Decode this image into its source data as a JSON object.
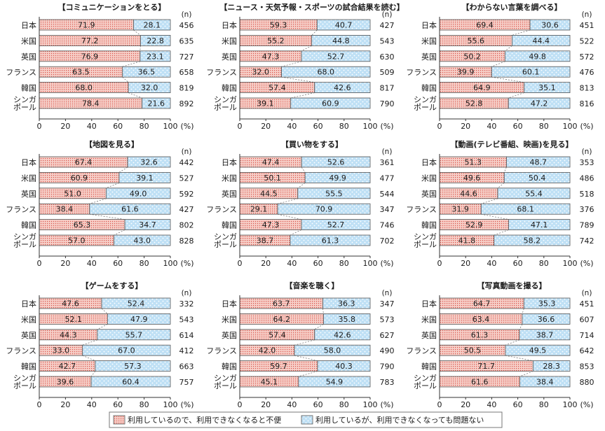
{
  "colors": {
    "inconvenient_fill": "#f6cfc8",
    "inconvenient_dot": "#d9544a",
    "no_problem_fill": "#bfe0f5",
    "no_problem_dot": "#ffffff",
    "bar_stroke": "#555555"
  },
  "legend": [
    {
      "label": "利用しているので、利用できなくなると不便",
      "pattern": "inconvenient"
    },
    {
      "label": "利用しているが、利用できなくなっても問題ない",
      "pattern": "no_problem"
    }
  ],
  "chart_data": [
    {
      "type": "bar",
      "orientation": "horizontal",
      "stacked": true,
      "title": "【コミュニケーションをとる】",
      "categories": [
        "日本",
        "米国",
        "英国",
        "フランス",
        "韓国",
        "シンガポール"
      ],
      "category_labels": [
        [
          "日本"
        ],
        [
          "米国"
        ],
        [
          "英国"
        ],
        [
          "フランス"
        ],
        [
          "韓国"
        ],
        [
          "シンガ",
          "ポール"
        ]
      ],
      "series": [
        {
          "name": "利用しているので、利用できなくなると不便",
          "values": [
            71.9,
            77.2,
            76.9,
            63.5,
            68.0,
            78.4
          ]
        },
        {
          "name": "利用しているが、利用できなくなっても問題ない",
          "values": [
            28.1,
            22.8,
            23.1,
            36.5,
            32.0,
            21.6
          ]
        }
      ],
      "n_label": "(n)",
      "n": [
        456,
        635,
        727,
        658,
        819,
        892
      ],
      "xlim": [
        0,
        100
      ],
      "xticks": [
        "0",
        "20",
        "40",
        "60",
        "80",
        "100"
      ],
      "unit": "(%)"
    },
    {
      "type": "bar",
      "orientation": "horizontal",
      "stacked": true,
      "title": "【ニュース・天気予報・スポーツの試合結果を読む】",
      "categories": [
        "日本",
        "米国",
        "英国",
        "フランス",
        "韓国",
        "シンガポール"
      ],
      "category_labels": [
        [
          "日本"
        ],
        [
          "米国"
        ],
        [
          "英国"
        ],
        [
          "フランス"
        ],
        [
          "韓国"
        ],
        [
          "シンガ",
          "ポール"
        ]
      ],
      "series": [
        {
          "name": "利用しているので、利用できなくなると不便",
          "values": [
            59.3,
            55.2,
            47.3,
            32.0,
            57.4,
            39.1
          ]
        },
        {
          "name": "利用しているが、利用できなくなっても問題ない",
          "values": [
            40.7,
            44.8,
            52.7,
            68.0,
            42.6,
            60.9
          ]
        }
      ],
      "n_label": "(n)",
      "n": [
        427,
        543,
        630,
        509,
        817,
        790
      ],
      "xlim": [
        0,
        100
      ],
      "xticks": [
        "0",
        "20",
        "40",
        "60",
        "80",
        "100"
      ],
      "unit": "(%)"
    },
    {
      "type": "bar",
      "orientation": "horizontal",
      "stacked": true,
      "title": "【わからない言葉を調べる】",
      "categories": [
        "日本",
        "米国",
        "英国",
        "フランス",
        "韓国",
        "シンガポール"
      ],
      "category_labels": [
        [
          "日本"
        ],
        [
          "米国"
        ],
        [
          "英国"
        ],
        [
          "フランス"
        ],
        [
          "韓国"
        ],
        [
          "シンガ",
          "ポール"
        ]
      ],
      "series": [
        {
          "name": "利用しているので、利用できなくなると不便",
          "values": [
            69.4,
            55.6,
            50.2,
            39.9,
            64.9,
            52.8
          ]
        },
        {
          "name": "利用しているが、利用できなくなっても問題ない",
          "values": [
            30.6,
            44.4,
            49.8,
            60.1,
            35.1,
            47.2
          ]
        }
      ],
      "n_label": "(n)",
      "n": [
        451,
        522,
        572,
        476,
        813,
        816
      ],
      "xlim": [
        0,
        100
      ],
      "xticks": [
        "0",
        "20",
        "40",
        "60",
        "80",
        "100"
      ],
      "unit": "(%)"
    },
    {
      "type": "bar",
      "orientation": "horizontal",
      "stacked": true,
      "title": "【地図を見る】",
      "categories": [
        "日本",
        "米国",
        "英国",
        "フランス",
        "韓国",
        "シンガポール"
      ],
      "category_labels": [
        [
          "日本"
        ],
        [
          "米国"
        ],
        [
          "英国"
        ],
        [
          "フランス"
        ],
        [
          "韓国"
        ],
        [
          "シンガ",
          "ポール"
        ]
      ],
      "series": [
        {
          "name": "利用しているので、利用できなくなると不便",
          "values": [
            67.4,
            60.9,
            51.0,
            38.4,
            65.3,
            57.0
          ]
        },
        {
          "name": "利用しているが、利用できなくなっても問題ない",
          "values": [
            32.6,
            39.1,
            49.0,
            61.6,
            34.7,
            43.0
          ]
        }
      ],
      "n_label": "(n)",
      "n": [
        442,
        527,
        592,
        427,
        802,
        828
      ],
      "xlim": [
        0,
        100
      ],
      "xticks": [
        "0",
        "20",
        "40",
        "60",
        "80",
        "100"
      ],
      "unit": "(%)"
    },
    {
      "type": "bar",
      "orientation": "horizontal",
      "stacked": true,
      "title": "【買い物をする】",
      "categories": [
        "日本",
        "米国",
        "英国",
        "フランス",
        "韓国",
        "シンガポール"
      ],
      "category_labels": [
        [
          "日本"
        ],
        [
          "米国"
        ],
        [
          "英国"
        ],
        [
          "フランス"
        ],
        [
          "韓国"
        ],
        [
          "シンガ",
          "ポール"
        ]
      ],
      "series": [
        {
          "name": "利用しているので、利用できなくなると不便",
          "values": [
            47.4,
            50.1,
            44.5,
            29.1,
            47.3,
            38.7
          ]
        },
        {
          "name": "利用しているが、利用できなくなっても問題ない",
          "values": [
            52.6,
            49.9,
            55.5,
            70.9,
            52.7,
            61.3
          ]
        }
      ],
      "n_label": "(n)",
      "n": [
        361,
        477,
        544,
        347,
        746,
        702
      ],
      "xlim": [
        0,
        100
      ],
      "xticks": [
        "0",
        "20",
        "40",
        "60",
        "80",
        "100"
      ],
      "unit": "(%)"
    },
    {
      "type": "bar",
      "orientation": "horizontal",
      "stacked": true,
      "title": "【動画(テレビ番組、映画)を見る】",
      "categories": [
        "日本",
        "米国",
        "英国",
        "フランス",
        "韓国",
        "シンガポール"
      ],
      "category_labels": [
        [
          "日本"
        ],
        [
          "米国"
        ],
        [
          "英国"
        ],
        [
          "フランス"
        ],
        [
          "韓国"
        ],
        [
          "シンガ",
          "ポール"
        ]
      ],
      "series": [
        {
          "name": "利用しているので、利用できなくなると不便",
          "values": [
            51.3,
            49.6,
            44.6,
            31.9,
            52.9,
            41.8
          ]
        },
        {
          "name": "利用しているが、利用できなくなっても問題ない",
          "values": [
            48.7,
            50.4,
            55.4,
            68.1,
            47.1,
            58.2
          ]
        }
      ],
      "n_label": "(n)",
      "n": [
        353,
        486,
        518,
        376,
        789,
        742
      ],
      "xlim": [
        0,
        100
      ],
      "xticks": [
        "0",
        "20",
        "40",
        "60",
        "80",
        "100"
      ],
      "unit": "(%)"
    },
    {
      "type": "bar",
      "orientation": "horizontal",
      "stacked": true,
      "title": "【ゲームをする】",
      "categories": [
        "日本",
        "米国",
        "英国",
        "フランス",
        "韓国",
        "シンガポール"
      ],
      "category_labels": [
        [
          "日本"
        ],
        [
          "米国"
        ],
        [
          "英国"
        ],
        [
          "フランス"
        ],
        [
          "韓国"
        ],
        [
          "シンガ",
          "ポール"
        ]
      ],
      "series": [
        {
          "name": "利用しているので、利用できなくなると不便",
          "values": [
            47.6,
            52.1,
            44.3,
            33.0,
            42.7,
            39.6
          ]
        },
        {
          "name": "利用しているが、利用できなくなっても問題ない",
          "values": [
            52.4,
            47.9,
            55.7,
            67.0,
            57.3,
            60.4
          ]
        }
      ],
      "n_label": "(n)",
      "n": [
        332,
        543,
        614,
        412,
        663,
        757
      ],
      "xlim": [
        0,
        100
      ],
      "xticks": [
        "0",
        "20",
        "40",
        "60",
        "80",
        "100"
      ],
      "unit": "(%)"
    },
    {
      "type": "bar",
      "orientation": "horizontal",
      "stacked": true,
      "title": "【音楽を聴く】",
      "categories": [
        "日本",
        "米国",
        "英国",
        "フランス",
        "韓国",
        "シンガポール"
      ],
      "category_labels": [
        [
          "日本"
        ],
        [
          "米国"
        ],
        [
          "英国"
        ],
        [
          "フランス"
        ],
        [
          "韓国"
        ],
        [
          "シンガ",
          "ポール"
        ]
      ],
      "series": [
        {
          "name": "利用しているので、利用できなくなると不便",
          "values": [
            63.7,
            64.2,
            57.4,
            42.0,
            59.7,
            45.1
          ]
        },
        {
          "name": "利用しているが、利用できなくなっても問題ない",
          "values": [
            36.3,
            35.8,
            42.6,
            58.0,
            40.3,
            54.9
          ]
        }
      ],
      "n_label": "(n)",
      "n": [
        347,
        573,
        627,
        490,
        790,
        783
      ],
      "xlim": [
        0,
        100
      ],
      "xticks": [
        "0",
        "20",
        "40",
        "60",
        "80",
        "100"
      ],
      "unit": "(%)"
    },
    {
      "type": "bar",
      "orientation": "horizontal",
      "stacked": true,
      "title": "【写真動画を撮る】",
      "categories": [
        "日本",
        "米国",
        "英国",
        "フランス",
        "韓国",
        "シンガポール"
      ],
      "category_labels": [
        [
          "日本"
        ],
        [
          "米国"
        ],
        [
          "英国"
        ],
        [
          "フランス"
        ],
        [
          "韓国"
        ],
        [
          "シンガ",
          "ポール"
        ]
      ],
      "series": [
        {
          "name": "利用しているので、利用できなくなると不便",
          "values": [
            64.7,
            63.4,
            61.3,
            50.5,
            71.7,
            61.6
          ]
        },
        {
          "name": "利用しているが、利用できなくなっても問題ない",
          "values": [
            35.3,
            36.6,
            38.7,
            49.5,
            28.3,
            38.4
          ]
        }
      ],
      "n_label": "(n)",
      "n": [
        451,
        607,
        714,
        642,
        853,
        880
      ],
      "xlim": [
        0,
        100
      ],
      "xticks": [
        "0",
        "20",
        "40",
        "60",
        "80",
        "100"
      ],
      "unit": "(%)"
    }
  ]
}
